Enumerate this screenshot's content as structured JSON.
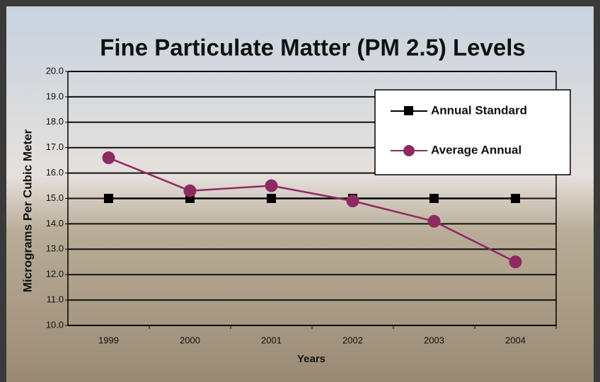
{
  "chart_data": {
    "type": "line",
    "title": "Fine Particulate Matter (PM 2.5) Levels",
    "y_label": "Micrograms Per Cubic Meter",
    "x_label": "Years",
    "categories": [
      "1999",
      "2000",
      "2001",
      "2002",
      "2003",
      "2004"
    ],
    "series": [
      {
        "name": "Annual Standard",
        "color": "#000000",
        "marker": "square",
        "values": [
          15,
          15,
          15,
          15,
          15,
          15
        ]
      },
      {
        "name": "Average Annual",
        "color": "#8e2a62",
        "marker": "circle",
        "values": [
          16.6,
          15.3,
          15.5,
          14.9,
          14.1,
          12.5
        ]
      }
    ],
    "ylim": [
      10,
      20
    ],
    "yticks": [
      {
        "value": 10,
        "label": "10.0"
      },
      {
        "value": 11,
        "label": "11.0"
      },
      {
        "value": 12,
        "label": "12.0"
      },
      {
        "value": 13,
        "label": "13.0"
      },
      {
        "value": 14,
        "label": "14.0"
      },
      {
        "value": 15,
        "label": "15.0"
      },
      {
        "value": 16,
        "label": "16.0"
      },
      {
        "value": 17,
        "label": "17.0"
      },
      {
        "value": 18,
        "label": "18.0"
      },
      {
        "value": 19,
        "label": "19.0"
      },
      {
        "value": 20,
        "label": "20.0"
      }
    ],
    "grid": true,
    "legend": "upper right"
  }
}
